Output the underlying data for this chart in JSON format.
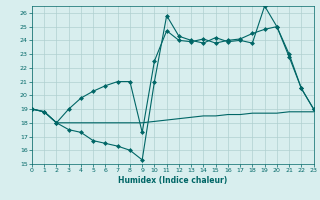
{
  "line1_x": [
    0,
    1,
    2,
    3,
    4,
    5,
    6,
    7,
    8,
    9,
    10,
    11,
    12,
    13,
    14,
    15,
    16,
    17,
    18,
    19,
    20,
    21,
    22,
    23
  ],
  "line1_y": [
    19.0,
    18.8,
    18.0,
    17.5,
    17.3,
    16.7,
    16.5,
    16.3,
    16.0,
    15.3,
    21.0,
    25.8,
    24.3,
    24.0,
    23.8,
    24.2,
    23.9,
    24.0,
    23.8,
    26.5,
    25.0,
    22.8,
    20.5,
    19.0
  ],
  "line2_x": [
    0,
    1,
    2,
    3,
    4,
    5,
    6,
    7,
    8,
    9,
    10,
    11,
    12,
    13,
    14,
    15,
    16,
    17,
    18,
    19,
    20,
    21,
    22,
    23
  ],
  "line2_y": [
    19.0,
    18.8,
    18.0,
    19.0,
    19.8,
    20.3,
    20.7,
    21.0,
    21.0,
    17.3,
    22.5,
    24.7,
    24.0,
    23.9,
    24.1,
    23.8,
    24.0,
    24.1,
    24.5,
    24.8,
    25.0,
    23.0,
    20.5,
    19.0
  ],
  "line3_x": [
    0,
    1,
    2,
    3,
    4,
    5,
    6,
    7,
    8,
    9,
    10,
    11,
    12,
    13,
    14,
    15,
    16,
    17,
    18,
    19,
    20,
    21,
    22,
    23
  ],
  "line3_y": [
    19.0,
    18.8,
    18.0,
    18.0,
    18.0,
    18.0,
    18.0,
    18.0,
    18.0,
    18.0,
    18.1,
    18.2,
    18.3,
    18.4,
    18.5,
    18.5,
    18.6,
    18.6,
    18.7,
    18.7,
    18.7,
    18.8,
    18.8,
    18.8
  ],
  "color": "#006666",
  "bg_color": "#d8eeee",
  "grid_color": "#b0d0d0",
  "xlabel": "Humidex (Indice chaleur)",
  "xlim": [
    0,
    23
  ],
  "ylim": [
    15,
    26.5
  ],
  "yticks": [
    15,
    16,
    17,
    18,
    19,
    20,
    21,
    22,
    23,
    24,
    25,
    26
  ],
  "xticks": [
    0,
    1,
    2,
    3,
    4,
    5,
    6,
    7,
    8,
    9,
    10,
    11,
    12,
    13,
    14,
    15,
    16,
    17,
    18,
    19,
    20,
    21,
    22,
    23
  ],
  "markersize": 2.5
}
